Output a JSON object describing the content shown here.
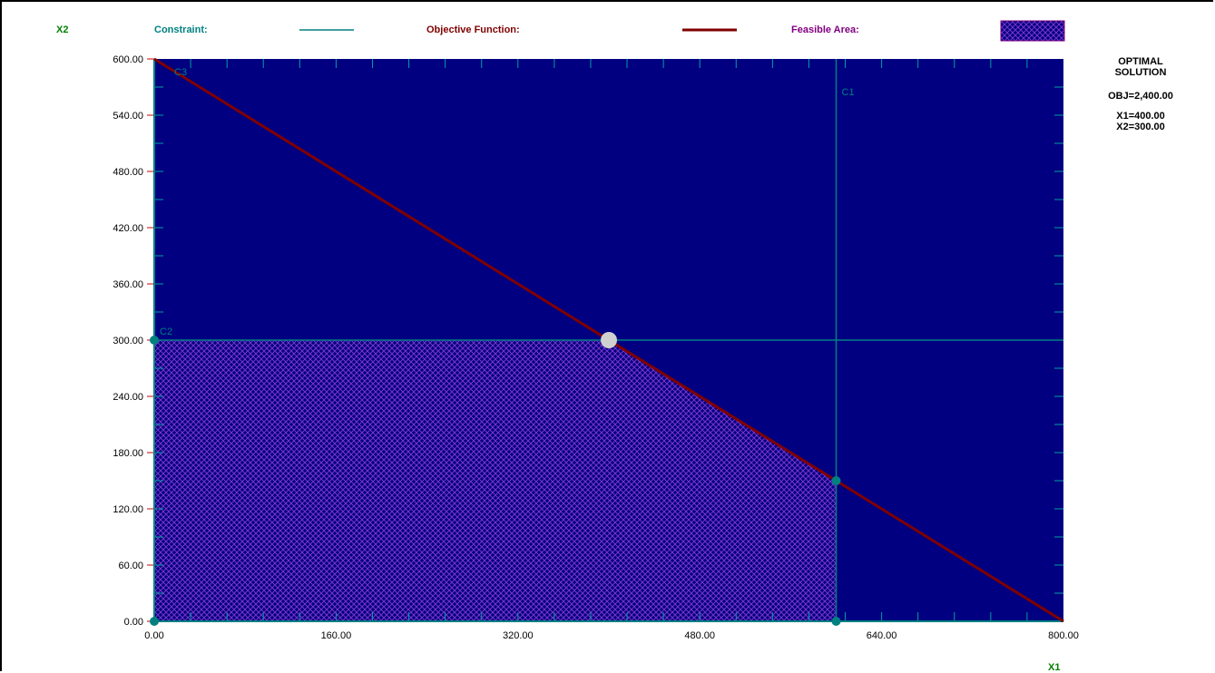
{
  "legend": {
    "constraint_label": "Constraint:",
    "objective_label": "Objective Function:",
    "feasible_label": "Feasible Area:"
  },
  "colors": {
    "plot_bg": "#000080",
    "constraint": "#008080",
    "objective": "#800000",
    "feasible": "#4B1F9E",
    "axis_label": "#008000",
    "legend_constraint_text": "#008080",
    "legend_objective_text": "#800000",
    "legend_feasible_text": "#800080"
  },
  "solution": {
    "title_line1": "OPTIMAL",
    "title_line2": "SOLUTION",
    "obj": "OBJ=2,400.00",
    "x1": "X1=400.00",
    "x2": "X2=300.00"
  },
  "chart_data": {
    "type": "line",
    "xlabel": "X1",
    "ylabel": "X2",
    "xlim": [
      0,
      800
    ],
    "ylim": [
      0,
      600
    ],
    "x_ticks": [
      {
        "value": 0,
        "label": "0.00"
      },
      {
        "value": 160,
        "label": "160.00"
      },
      {
        "value": 320,
        "label": "320.00"
      },
      {
        "value": 480,
        "label": "480.00"
      },
      {
        "value": 640,
        "label": "640.00"
      },
      {
        "value": 800,
        "label": "800.00"
      }
    ],
    "y_ticks": [
      {
        "value": 0,
        "label": "0.00"
      },
      {
        "value": 60,
        "label": "60.00"
      },
      {
        "value": 120,
        "label": "120.00"
      },
      {
        "value": 180,
        "label": "180.00"
      },
      {
        "value": 240,
        "label": "240.00"
      },
      {
        "value": 300,
        "label": "300.00"
      },
      {
        "value": 360,
        "label": "360.00"
      },
      {
        "value": 420,
        "label": "420.00"
      },
      {
        "value": 480,
        "label": "480.00"
      },
      {
        "value": 540,
        "label": "540.00"
      },
      {
        "value": 600,
        "label": "600.00"
      }
    ],
    "constraints": [
      {
        "name": "C1",
        "points": [
          [
            600,
            0
          ],
          [
            600,
            600
          ]
        ]
      },
      {
        "name": "C2",
        "points": [
          [
            0,
            300
          ],
          [
            800,
            300
          ]
        ]
      },
      {
        "name": "C3",
        "points": [
          [
            0,
            600
          ],
          [
            800,
            0
          ]
        ]
      }
    ],
    "objective_function": {
      "points": [
        [
          0,
          600
        ],
        [
          800,
          0
        ]
      ]
    },
    "feasible_region": [
      [
        0,
        0
      ],
      [
        0,
        300
      ],
      [
        400,
        300
      ],
      [
        600,
        150
      ],
      [
        600,
        0
      ]
    ],
    "vertices": [
      [
        0,
        0
      ],
      [
        0,
        300
      ],
      [
        600,
        0
      ],
      [
        600,
        150
      ]
    ],
    "optimal_point": [
      400,
      300
    ]
  }
}
